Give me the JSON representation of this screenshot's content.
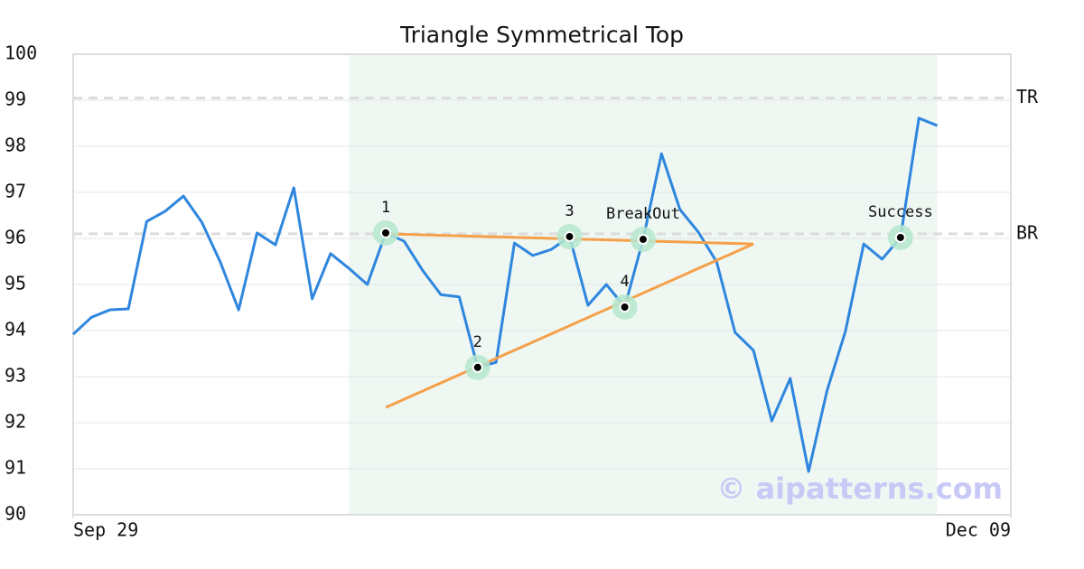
{
  "chart_data": {
    "type": "line",
    "title": "Triangle Symmetrical Top",
    "x": [
      0,
      1,
      2,
      3,
      4,
      5,
      6,
      7,
      8,
      9,
      10,
      11,
      12,
      13,
      14,
      15,
      16,
      17,
      18,
      19,
      20,
      21,
      22,
      23,
      24,
      25,
      26,
      27,
      28,
      29,
      30,
      31,
      32,
      33,
      34,
      35,
      36,
      37,
      38,
      39,
      40,
      41,
      42,
      43,
      44,
      45,
      46,
      47
    ],
    "values": [
      93.92,
      94.29,
      94.45,
      94.47,
      96.37,
      96.59,
      96.92,
      96.35,
      95.49,
      94.45,
      96.12,
      95.86,
      97.1,
      94.69,
      95.67,
      95.35,
      95.0,
      96.12,
      95.94,
      95.31,
      94.78,
      94.73,
      93.2,
      93.31,
      95.9,
      95.63,
      95.76,
      96.04,
      94.55,
      95.0,
      94.51,
      95.98,
      97.84,
      96.63,
      96.14,
      95.49,
      93.96,
      93.57,
      92.04,
      92.96,
      90.94,
      92.69,
      93.98,
      95.88,
      95.55,
      96.02,
      98.61,
      98.45
    ],
    "color": "#2e86de",
    "xlim": [
      0,
      51
    ],
    "xticks": [
      {
        "value": 0,
        "label": "Sep 29"
      },
      {
        "value": 51,
        "label": "Dec 09"
      }
    ],
    "ylim": [
      90,
      100
    ],
    "yticks": [
      90,
      91,
      92,
      93,
      94,
      95,
      96,
      97,
      98,
      99,
      100
    ],
    "grid": true,
    "shaded_range": [
      15,
      47
    ],
    "levels": [
      {
        "label": "TR",
        "value": 99.05
      },
      {
        "label": "BR",
        "value": 96.1
      }
    ],
    "trendlines": [
      {
        "x": [
          17,
          37
        ],
        "values": [
          96.1,
          95.88
        ]
      },
      {
        "x": [
          17,
          37
        ],
        "values": [
          92.33,
          95.88
        ]
      }
    ],
    "trend_color": "#f5a04a",
    "annotations": [
      {
        "label": "1",
        "x": 17,
        "value": 96.12
      },
      {
        "label": "2",
        "x": 22,
        "value": 93.2
      },
      {
        "label": "3",
        "x": 27,
        "value": 96.04
      },
      {
        "label": "4",
        "x": 30,
        "value": 94.51
      },
      {
        "label": "BreakOut",
        "x": 31,
        "value": 95.98
      },
      {
        "label": "Success",
        "x": 45,
        "value": 96.02
      }
    ],
    "watermark": "© aipatterns.com"
  }
}
